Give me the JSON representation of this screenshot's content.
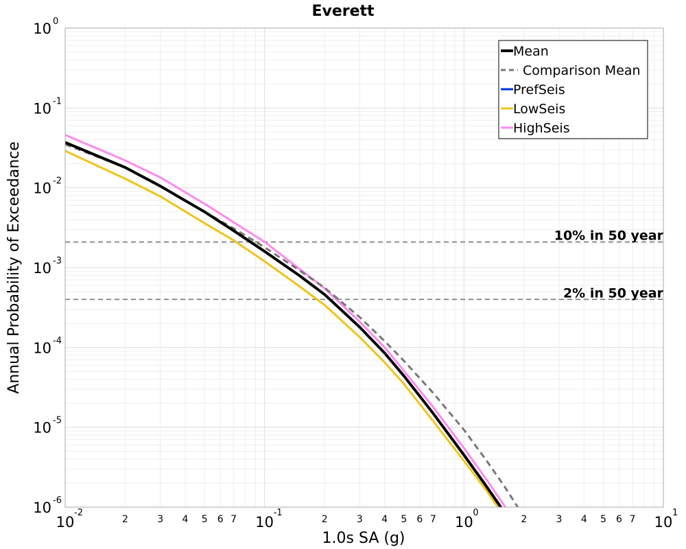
{
  "chart_data": {
    "type": "line",
    "title": "Everett",
    "xlabel": "1.0s SA (g)",
    "ylabel": "Annual Probability of Exceedance",
    "x_scale": "log",
    "y_scale": "log",
    "xlim": [
      0.01,
      10
    ],
    "ylim": [
      1e-06,
      1
    ],
    "grid": true,
    "legend_position": "top-right",
    "x_decade_labels": [
      {
        "value": 0.01,
        "base": "10",
        "exp": "-2"
      },
      {
        "value": 0.1,
        "base": "10",
        "exp": "-1"
      },
      {
        "value": 1,
        "base": "10",
        "exp": "0"
      },
      {
        "value": 10,
        "base": "10",
        "exp": "1"
      }
    ],
    "x_minor_labels": [
      {
        "value": 0.02,
        "label": "2"
      },
      {
        "value": 0.03,
        "label": "3"
      },
      {
        "value": 0.04,
        "label": "4"
      },
      {
        "value": 0.05,
        "label": "5"
      },
      {
        "value": 0.06,
        "label": "6"
      },
      {
        "value": 0.07,
        "label": "7"
      },
      {
        "value": 0.2,
        "label": "2"
      },
      {
        "value": 0.3,
        "label": "3"
      },
      {
        "value": 0.4,
        "label": "4"
      },
      {
        "value": 0.5,
        "label": "5"
      },
      {
        "value": 0.6,
        "label": "6"
      },
      {
        "value": 0.7,
        "label": "7"
      },
      {
        "value": 2,
        "label": "2"
      },
      {
        "value": 3,
        "label": "3"
      },
      {
        "value": 4,
        "label": "4"
      },
      {
        "value": 5,
        "label": "5"
      },
      {
        "value": 6,
        "label": "6"
      },
      {
        "value": 7,
        "label": "7"
      }
    ],
    "y_decade_labels": [
      {
        "value": 1,
        "base": "10",
        "exp": "0"
      },
      {
        "value": 0.1,
        "base": "10",
        "exp": "-1"
      },
      {
        "value": 0.01,
        "base": "10",
        "exp": "-2"
      },
      {
        "value": 0.001,
        "base": "10",
        "exp": "-3"
      },
      {
        "value": 0.0001,
        "base": "10",
        "exp": "-4"
      },
      {
        "value": 1e-05,
        "base": "10",
        "exp": "-5"
      },
      {
        "value": 1e-06,
        "base": "10",
        "exp": "-6"
      }
    ],
    "reference_lines": [
      {
        "label": "10% in 50 year",
        "y": 0.0021,
        "color": "#777777"
      },
      {
        "label": "2% in 50 year",
        "y": 0.0004,
        "color": "#777777"
      }
    ],
    "series": [
      {
        "name": "Mean",
        "color": "#000000",
        "dashed": false,
        "x": [
          0.01,
          0.02,
          0.03,
          0.05,
          0.07,
          0.1,
          0.15,
          0.2,
          0.3,
          0.4,
          0.5,
          0.7,
          1.0,
          1.3,
          1.6
        ],
        "y": [
          0.037,
          0.018,
          0.0105,
          0.005,
          0.0029,
          0.0016,
          0.00079,
          0.00046,
          0.00018,
          8.5e-05,
          4.4e-05,
          1.5e-05,
          4.5e-06,
          1.8e-06,
          8.5e-07
        ]
      },
      {
        "name": "Comparison Mean",
        "color": "#777777",
        "dashed": true,
        "x": [
          0.01,
          0.02,
          0.03,
          0.05,
          0.07,
          0.1,
          0.15,
          0.2,
          0.3,
          0.4,
          0.5,
          0.7,
          1.0,
          1.3,
          1.6,
          1.9
        ],
        "y": [
          0.035,
          0.018,
          0.0105,
          0.005,
          0.0031,
          0.0018,
          0.00092,
          0.00056,
          0.00024,
          0.00012,
          6.8e-05,
          2.7e-05,
          9.3e-06,
          3.8e-06,
          1.8e-06,
          9.2e-07
        ]
      },
      {
        "name": "PrefSeis",
        "color": "#0033dd",
        "dashed": false,
        "x": [
          0.01,
          0.02,
          0.03,
          0.05,
          0.07,
          0.1,
          0.15,
          0.2,
          0.3,
          0.4,
          0.5,
          0.7,
          1.0,
          1.3,
          1.6
        ],
        "y": [
          0.037,
          0.018,
          0.0105,
          0.005,
          0.0029,
          0.0016,
          0.00079,
          0.00046,
          0.00018,
          8.5e-05,
          4.4e-05,
          1.5e-05,
          4.5e-06,
          1.8e-06,
          8.5e-07
        ]
      },
      {
        "name": "LowSeis",
        "color": "#f0c419",
        "dashed": false,
        "x": [
          0.01,
          0.02,
          0.03,
          0.05,
          0.07,
          0.1,
          0.15,
          0.2,
          0.3,
          0.4,
          0.5,
          0.7,
          1.0,
          1.3,
          1.6
        ],
        "y": [
          0.029,
          0.013,
          0.0078,
          0.0036,
          0.0022,
          0.0012,
          0.00058,
          0.00034,
          0.000135,
          6.5e-05,
          3.5e-05,
          1.2e-05,
          3.8e-06,
          1.6e-06,
          7.5e-07
        ]
      },
      {
        "name": "HighSeis",
        "color": "#ff88f0",
        "dashed": false,
        "x": [
          0.01,
          0.02,
          0.03,
          0.05,
          0.07,
          0.1,
          0.15,
          0.2,
          0.3,
          0.4,
          0.5,
          0.7,
          1.0,
          1.3,
          1.65
        ],
        "y": [
          0.046,
          0.022,
          0.0135,
          0.0063,
          0.0037,
          0.0021,
          0.00096,
          0.00055,
          0.00021,
          0.0001,
          5.1e-05,
          1.8e-05,
          5.5e-06,
          2.2e-06,
          9.2e-07
        ]
      }
    ]
  }
}
